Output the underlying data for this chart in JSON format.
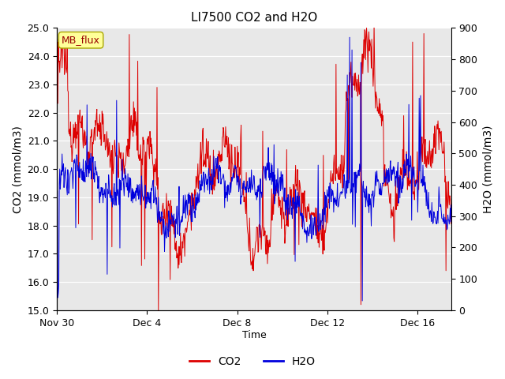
{
  "title": "LI7500 CO2 and H2O",
  "xlabel": "Time",
  "ylabel_left": "CO2 (mmol/m3)",
  "ylabel_right": "H2O (mmol/m3)",
  "ylim_left": [
    15.0,
    25.0
  ],
  "ylim_right": [
    0,
    900
  ],
  "yticks_left": [
    15.0,
    16.0,
    17.0,
    18.0,
    19.0,
    20.0,
    21.0,
    22.0,
    23.0,
    24.0,
    25.0
  ],
  "yticks_right": [
    0,
    100,
    200,
    300,
    400,
    500,
    600,
    700,
    800,
    900
  ],
  "xtick_labels": [
    "Nov 30",
    "Dec 4",
    "Dec 8",
    "Dec 12",
    "Dec 16"
  ],
  "xtick_positions": [
    0,
    4,
    8,
    12,
    16
  ],
  "xlim": [
    0,
    17.5
  ],
  "mb_flux_label": "MB_flux",
  "mb_flux_bg": "#ffff99",
  "mb_flux_border": "#aaa800",
  "mb_flux_text_color": "#990000",
  "co2_color": "#dd0000",
  "h2o_color": "#0000dd",
  "plot_bg_color": "#e8e8e8",
  "fig_bg_color": "#ffffff",
  "grid_color": "#ffffff",
  "legend_co2": "CO2",
  "legend_h2o": "H2O",
  "seed": 12345
}
